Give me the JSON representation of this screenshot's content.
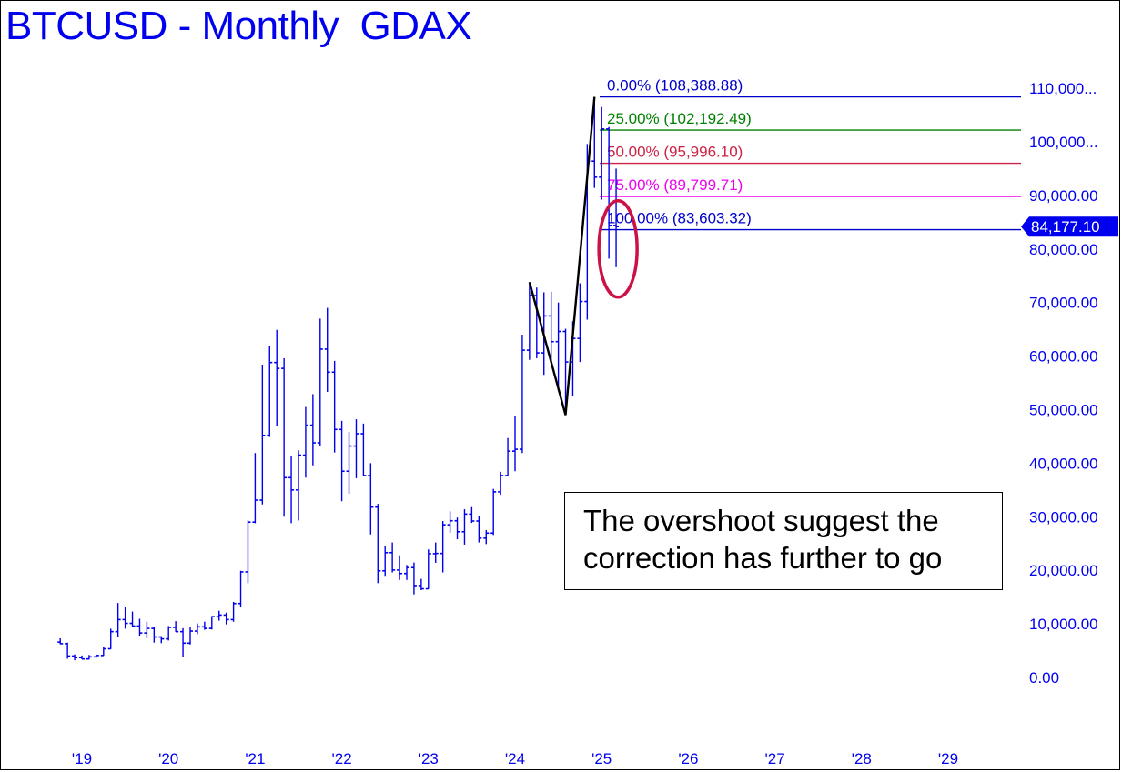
{
  "title": "BTCUSD - Monthly  GDAX",
  "annotation": {
    "line1": "The overshoot suggest the",
    "line2": "correction has further to go"
  },
  "colors": {
    "price_bars": "#0000ee",
    "axis_text": "#0000ee",
    "level_0": "#0000cc",
    "level_25": "#008000",
    "level_50": "#cc2244",
    "level_75": "#ee00ee",
    "level_100": "#0000cc",
    "ellipse": "#cc1144",
    "swing_line": "#000000",
    "current_tag_bg": "#0000ee",
    "current_tag_text": "#ffffff"
  },
  "chart_data": {
    "type": "ohlc",
    "interval": "monthly",
    "ylim": [
      0,
      110000
    ],
    "y_ticks": [
      "110,000...",
      "100,000...",
      "90,000.00",
      "80,000.00",
      "70,000.00",
      "60,000.00",
      "50,000.00",
      "40,000.00",
      "30,000.00",
      "20,000.00",
      "10,000.00",
      "0.00"
    ],
    "y_tick_values": [
      110000,
      100000,
      90000,
      80000,
      70000,
      60000,
      50000,
      40000,
      30000,
      20000,
      10000,
      0
    ],
    "x_ticks": [
      "'19",
      "'20",
      "'21",
      "'22",
      "'23",
      "'24",
      "'25",
      "'26",
      "'27",
      "'28",
      "'29"
    ],
    "x_tick_years": [
      2019,
      2020,
      2021,
      2022,
      2023,
      2024,
      2025,
      2026,
      2027,
      2028,
      2029
    ],
    "current_price": "84,177.10",
    "current_price_value": 84177.1,
    "fib_levels": [
      {
        "label": "0.00% (108,388.88)",
        "value": 108388.88,
        "color_key": "level_0"
      },
      {
        "label": "25.00% (102,192.49)",
        "value": 102192.49,
        "color_key": "level_25"
      },
      {
        "label": "50.00% (95,996.10)",
        "value": 95996.1,
        "color_key": "level_50"
      },
      {
        "label": "75.00% (89,799.71)",
        "value": 89799.71,
        "color_key": "level_75"
      },
      {
        "label": "100.00% (83,603.32)",
        "value": 83603.32,
        "color_key": "level_100"
      }
    ],
    "swing_line": [
      {
        "date": "2024-03",
        "price": 73800
      },
      {
        "date": "2024-08",
        "price": 49000
      },
      {
        "date": "2024-12",
        "price": 108388.88
      }
    ],
    "ellipse_center": {
      "date": "2025-02",
      "price": 80000
    },
    "bars": [
      [
        "2018-10",
        6600,
        7300,
        6200,
        6300
      ],
      [
        "2018-11",
        6300,
        6500,
        3500,
        4000
      ],
      [
        "2018-12",
        4000,
        4300,
        3200,
        3700
      ],
      [
        "2019-01",
        3700,
        4100,
        3400,
        3450
      ],
      [
        "2019-02",
        3450,
        4200,
        3350,
        3850
      ],
      [
        "2019-03",
        3850,
        4150,
        3700,
        4100
      ],
      [
        "2019-04",
        4100,
        5600,
        4050,
        5350
      ],
      [
        "2019-05",
        5350,
        9100,
        5300,
        8550
      ],
      [
        "2019-06",
        8550,
        13900,
        7500,
        10800
      ],
      [
        "2019-07",
        10800,
        13200,
        9100,
        10100
      ],
      [
        "2019-08",
        10100,
        12300,
        9400,
        9600
      ],
      [
        "2019-09",
        9600,
        10950,
        7800,
        8300
      ],
      [
        "2019-10",
        8300,
        10400,
        7300,
        9150
      ],
      [
        "2019-11",
        9150,
        9500,
        6500,
        7550
      ],
      [
        "2019-12",
        7550,
        7700,
        6400,
        7200
      ],
      [
        "2020-01",
        7200,
        9600,
        6900,
        9350
      ],
      [
        "2020-02",
        9350,
        10500,
        8500,
        8550
      ],
      [
        "2020-03",
        8550,
        9200,
        3850,
        6400
      ],
      [
        "2020-04",
        6400,
        9500,
        6150,
        8650
      ],
      [
        "2020-05",
        8650,
        10080,
        8100,
        9450
      ],
      [
        "2020-06",
        9450,
        10400,
        8900,
        9150
      ],
      [
        "2020-07",
        9150,
        11450,
        8950,
        11350
      ],
      [
        "2020-08",
        11350,
        12450,
        10600,
        11650
      ],
      [
        "2020-09",
        11650,
        12100,
        9900,
        10800
      ],
      [
        "2020-10",
        10800,
        14100,
        10400,
        13800
      ],
      [
        "2020-11",
        13800,
        19900,
        13200,
        19700
      ],
      [
        "2020-12",
        19700,
        29300,
        17600,
        29000
      ],
      [
        "2021-01",
        29000,
        41900,
        28800,
        33100
      ],
      [
        "2021-02",
        33100,
        58400,
        32300,
        45200
      ],
      [
        "2021-03",
        45200,
        61800,
        44900,
        58800
      ],
      [
        "2021-04",
        58800,
        64900,
        47000,
        57700
      ],
      [
        "2021-05",
        57700,
        59600,
        30000,
        37300
      ],
      [
        "2021-06",
        37300,
        41300,
        28800,
        35000
      ],
      [
        "2021-07",
        35000,
        42400,
        29300,
        41500
      ],
      [
        "2021-08",
        41500,
        50500,
        37300,
        47100
      ],
      [
        "2021-09",
        47100,
        52900,
        39600,
        43800
      ],
      [
        "2021-10",
        43800,
        67000,
        43300,
        61300
      ],
      [
        "2021-11",
        61300,
        69000,
        53300,
        57000
      ],
      [
        "2021-12",
        57000,
        59100,
        42000,
        46300
      ],
      [
        "2022-01",
        46300,
        47900,
        32900,
        38500
      ],
      [
        "2022-02",
        38500,
        45800,
        34300,
        43200
      ],
      [
        "2022-03",
        43200,
        48200,
        37200,
        45500
      ],
      [
        "2022-04",
        45500,
        47400,
        37700,
        37700
      ],
      [
        "2022-05",
        37700,
        40000,
        26700,
        31800
      ],
      [
        "2022-06",
        31800,
        32400,
        17600,
        19900
      ],
      [
        "2022-07",
        19900,
        24600,
        18800,
        23300
      ],
      [
        "2022-08",
        23300,
        25200,
        19600,
        20050
      ],
      [
        "2022-09",
        20050,
        22800,
        18200,
        19400
      ],
      [
        "2022-10",
        19400,
        21000,
        18200,
        20500
      ],
      [
        "2022-11",
        20500,
        21450,
        15500,
        17150
      ],
      [
        "2022-12",
        17150,
        18400,
        16300,
        16550
      ],
      [
        "2023-01",
        16550,
        23900,
        16500,
        23100
      ],
      [
        "2023-02",
        23100,
        25200,
        21400,
        23150
      ],
      [
        "2023-03",
        23150,
        29200,
        19600,
        28500
      ],
      [
        "2023-04",
        28500,
        31000,
        27000,
        29250
      ],
      [
        "2023-05",
        29250,
        29850,
        25800,
        27200
      ],
      [
        "2023-06",
        27200,
        31400,
        24800,
        30500
      ],
      [
        "2023-07",
        30500,
        31800,
        28850,
        29200
      ],
      [
        "2023-08",
        29200,
        30200,
        25200,
        26000
      ],
      [
        "2023-09",
        26000,
        27500,
        24900,
        26950
      ],
      [
        "2023-10",
        26950,
        35200,
        26600,
        34650
      ],
      [
        "2023-11",
        34650,
        38400,
        34100,
        37700
      ],
      [
        "2023-12",
        37700,
        44700,
        37600,
        42250
      ],
      [
        "2024-01",
        42250,
        48900,
        38500,
        42600
      ],
      [
        "2024-02",
        42600,
        64000,
        41900,
        61100
      ],
      [
        "2024-03",
        61100,
        73800,
        59300,
        71300
      ],
      [
        "2024-04",
        71300,
        72800,
        59600,
        60600
      ],
      [
        "2024-05",
        60600,
        71900,
        56500,
        67500
      ],
      [
        "2024-06",
        67500,
        72000,
        58600,
        62700
      ],
      [
        "2024-07",
        62700,
        70000,
        53500,
        64600
      ],
      [
        "2024-08",
        64600,
        65100,
        49000,
        58900
      ],
      [
        "2024-09",
        58900,
        66500,
        52600,
        63300
      ],
      [
        "2024-10",
        63300,
        73600,
        58900,
        70200
      ],
      [
        "2024-11",
        70200,
        99600,
        66800,
        96400
      ],
      [
        "2024-12",
        96400,
        108388.88,
        91400,
        93400
      ],
      [
        "2025-01",
        93400,
        106500,
        89200,
        102400
      ],
      [
        "2025-02",
        102400,
        102750,
        78200,
        84400
      ],
      [
        "2025-03",
        84400,
        95000,
        76600,
        84177.1
      ]
    ]
  }
}
